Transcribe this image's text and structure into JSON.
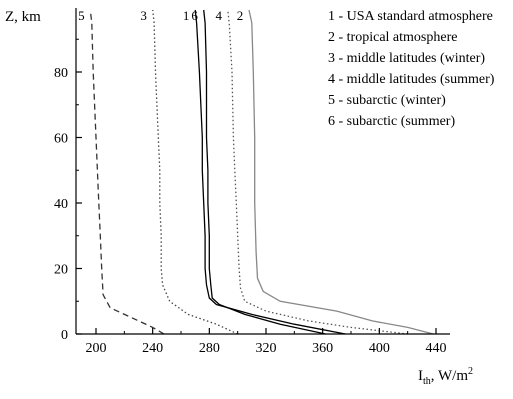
{
  "chart_data": {
    "type": "line",
    "title": "",
    "xlabel": "I",
    "xlabel_subscript": "th",
    "xlabel_unit": ", W/m",
    "xlabel_superscript": "2",
    "ylabel": "Z, km",
    "xlim": [
      180,
      450
    ],
    "ylim": [
      0,
      100
    ],
    "x_ticks": [
      200,
      240,
      280,
      320,
      360,
      400,
      440
    ],
    "y_ticks": [
      0,
      20,
      40,
      60,
      80
    ],
    "grid": false,
    "legend_position": "top-right",
    "legend": [
      "1 - USA standard atmosphere",
      "2 - tropical atmosphere",
      "3 - middle latitudes (winter)",
      "4 - middle latitudes (summer)",
      "5 - subarctic (winter)",
      "6 - subarctic (summer)"
    ],
    "series": [
      {
        "name": "1",
        "label": "1",
        "color": "#000000",
        "dash": "solid",
        "x": [
          376,
          340,
          310,
          285,
          280,
          278,
          277,
          277,
          276,
          275,
          275,
          273,
          271,
          270
        ],
        "y": [
          0,
          3,
          6,
          9,
          11,
          15,
          20,
          30,
          40,
          50,
          60,
          80,
          95,
          100
        ]
      },
      {
        "name": "2",
        "label": "2",
        "color": "#888888",
        "dash": "solid",
        "x": [
          438,
          420,
          395,
          370,
          330,
          318,
          314,
          313,
          312,
          312,
          312,
          311,
          310,
          308
        ],
        "y": [
          0,
          2,
          4,
          7,
          10,
          13,
          17,
          25,
          40,
          50,
          60,
          80,
          95,
          100
        ]
      },
      {
        "name": "3",
        "label": "3",
        "color": "#444444",
        "dash": "dot",
        "x": [
          300,
          285,
          265,
          252,
          247,
          246,
          246,
          245,
          245,
          244,
          243,
          242,
          241,
          240
        ],
        "y": [
          0,
          3,
          6,
          10,
          15,
          20,
          30,
          40,
          50,
          60,
          70,
          80,
          95,
          100
        ]
      },
      {
        "name": "4",
        "label": "4",
        "color": "#555555",
        "dash": "dot",
        "x": [
          420,
          380,
          350,
          320,
          305,
          302,
          301,
          300,
          299,
          298,
          297,
          296,
          294,
          293
        ],
        "y": [
          0,
          2,
          4,
          7,
          10,
          14,
          20,
          30,
          40,
          50,
          60,
          80,
          95,
          100
        ]
      },
      {
        "name": "5",
        "label": "5",
        "color": "#333333",
        "dash": "dash",
        "x": [
          248,
          240,
          225,
          210,
          205,
          204,
          203,
          202,
          201,
          200,
          199,
          198,
          197,
          196
        ],
        "y": [
          0,
          2,
          5,
          8,
          12,
          20,
          30,
          40,
          50,
          60,
          70,
          80,
          95,
          100
        ]
      },
      {
        "name": "6",
        "label": "6",
        "color": "#000000",
        "dash": "solid",
        "x": [
          362,
          330,
          305,
          287,
          282,
          281,
          280,
          280,
          279,
          279,
          278,
          278,
          277,
          276
        ],
        "y": [
          0,
          3,
          6,
          9,
          11,
          15,
          20,
          30,
          40,
          50,
          60,
          80,
          95,
          100
        ]
      }
    ]
  }
}
